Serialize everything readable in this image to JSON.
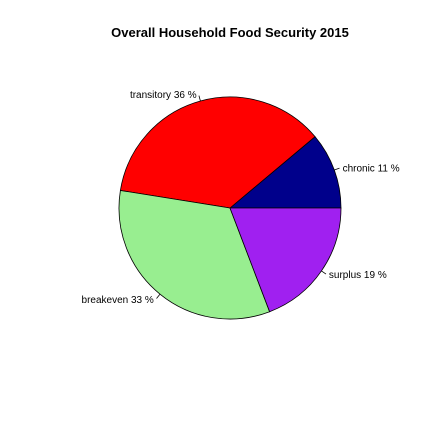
{
  "chart_data": {
    "type": "pie",
    "title": "Overall Household Food Security 2015",
    "slices": [
      {
        "name": "chronic",
        "value": 11,
        "label": "chronic 11 %",
        "color": "#00008B"
      },
      {
        "name": "transitory",
        "value": 36,
        "label": "transitory 36 %",
        "color": "#FF0000"
      },
      {
        "name": "breakeven",
        "value": 33,
        "label": "breakeven 33 %",
        "color": "#98EE90"
      },
      {
        "name": "surplus",
        "value": 19,
        "label": "surplus 19 %",
        "color": "#A020F0"
      }
    ],
    "direction": "counterclockwise",
    "start": "east",
    "legend": "none"
  }
}
